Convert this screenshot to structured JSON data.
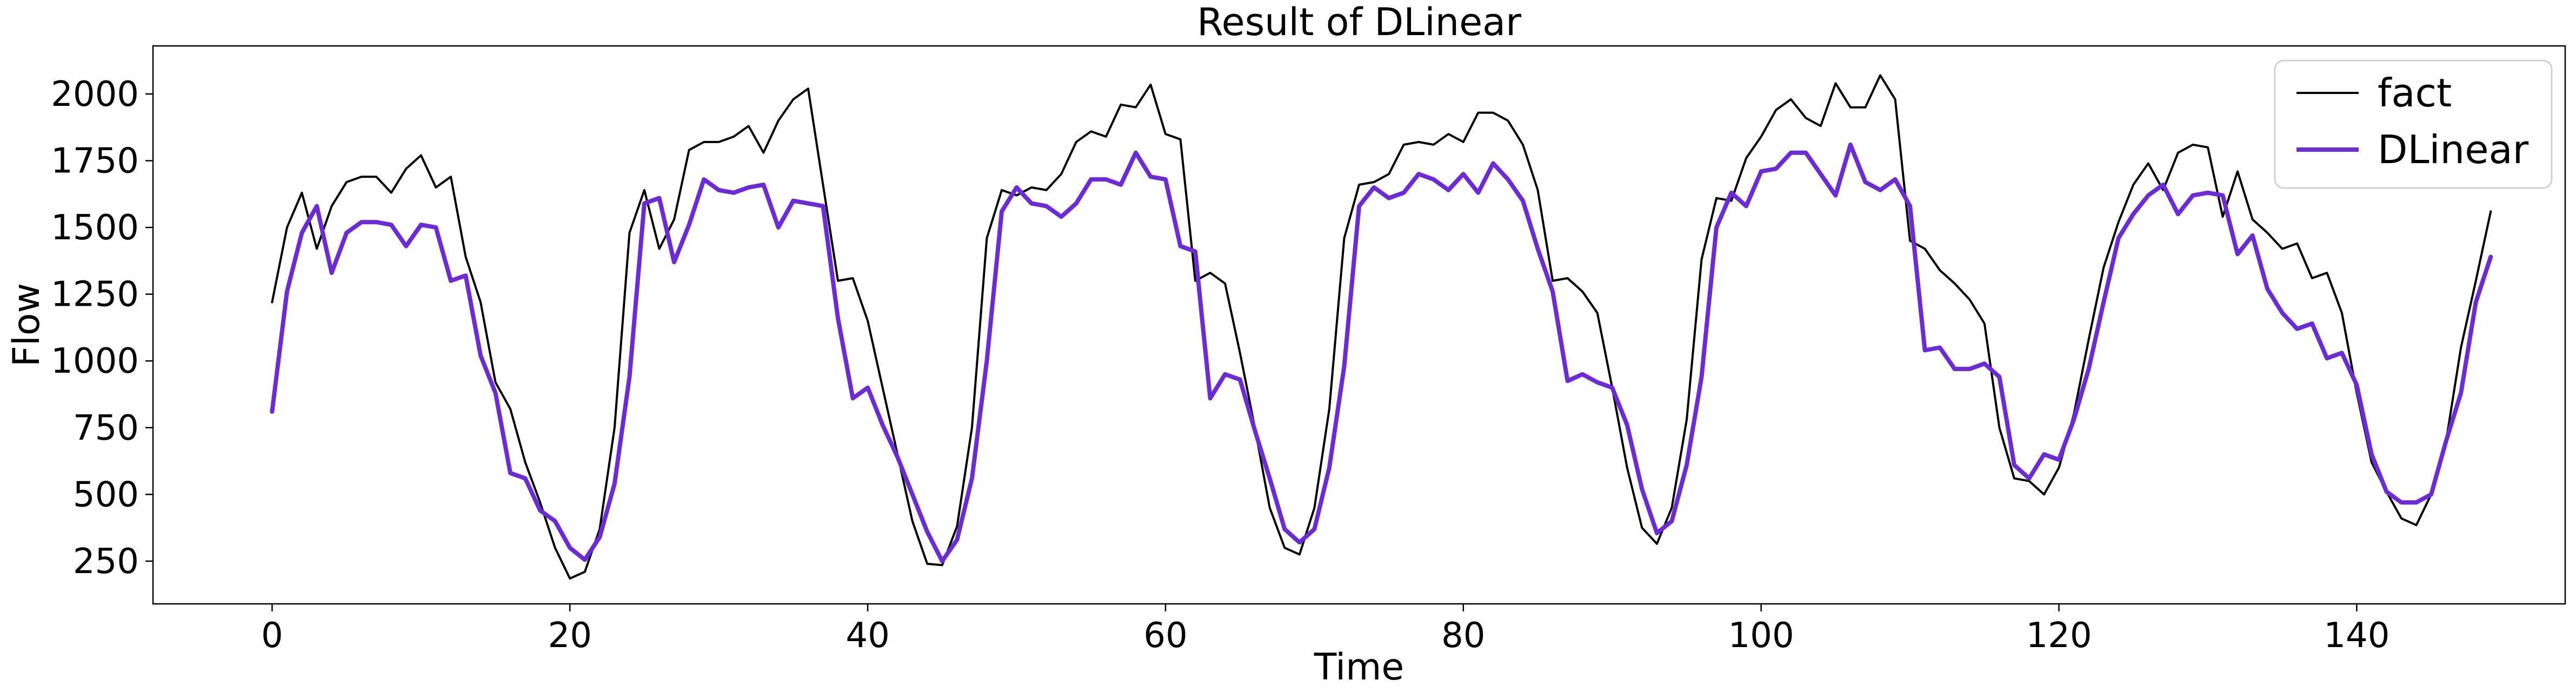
{
  "chart_data": {
    "type": "line",
    "title": "Result of DLinear",
    "xlabel": "Time",
    "ylabel": "Flow",
    "xlim": [
      -8,
      154
    ],
    "ylim": [
      90,
      2180
    ],
    "xticks": [
      0,
      20,
      40,
      60,
      80,
      100,
      120,
      140
    ],
    "yticks": [
      250,
      500,
      750,
      1000,
      1250,
      1500,
      1750,
      2000
    ],
    "grid": false,
    "legend_position": "top-right",
    "x": [
      0,
      1,
      2,
      3,
      4,
      5,
      6,
      7,
      8,
      9,
      10,
      11,
      12,
      13,
      14,
      15,
      16,
      17,
      18,
      19,
      20,
      21,
      22,
      23,
      24,
      25,
      26,
      27,
      28,
      29,
      30,
      31,
      32,
      33,
      34,
      35,
      36,
      37,
      38,
      39,
      40,
      41,
      42,
      43,
      44,
      45,
      46,
      47,
      48,
      49,
      50,
      51,
      52,
      53,
      54,
      55,
      56,
      57,
      58,
      59,
      60,
      61,
      62,
      63,
      64,
      65,
      66,
      67,
      68,
      69,
      70,
      71,
      72,
      73,
      74,
      75,
      76,
      77,
      78,
      79,
      80,
      81,
      82,
      83,
      84,
      85,
      86,
      87,
      88,
      89,
      90,
      91,
      92,
      93,
      94,
      95,
      96,
      97,
      98,
      99,
      100,
      101,
      102,
      103,
      104,
      105,
      106,
      107,
      108,
      109,
      110,
      111,
      112,
      113,
      114,
      115,
      116,
      117,
      118,
      119,
      120,
      121,
      122,
      123,
      124,
      125,
      126,
      127,
      128,
      129,
      130,
      131,
      132,
      133,
      134,
      135,
      136,
      137,
      138,
      139,
      140,
      141,
      142,
      143,
      144,
      145,
      146,
      147,
      148,
      149
    ],
    "series": [
      {
        "name": "fact",
        "color": "#000000",
        "values": [
          1220,
          1500,
          1630,
          1420,
          1580,
          1670,
          1690,
          1690,
          1630,
          1720,
          1770,
          1650,
          1690,
          1390,
          1220,
          920,
          820,
          620,
          470,
          300,
          185,
          210,
          370,
          750,
          1480,
          1640,
          1420,
          1530,
          1790,
          1820,
          1820,
          1840,
          1880,
          1780,
          1900,
          1980,
          2020,
          1660,
          1300,
          1310,
          1150,
          900,
          650,
          400,
          240,
          235,
          380,
          750,
          1460,
          1640,
          1620,
          1650,
          1640,
          1700,
          1820,
          1860,
          1840,
          1960,
          1950,
          2035,
          1850,
          1830,
          1300,
          1330,
          1290,
          1030,
          750,
          450,
          300,
          275,
          450,
          820,
          1460,
          1660,
          1670,
          1700,
          1810,
          1820,
          1810,
          1850,
          1820,
          1930,
          1930,
          1900,
          1810,
          1640,
          1300,
          1310,
          1260,
          1180,
          900,
          600,
          375,
          315,
          450,
          780,
          1380,
          1610,
          1600,
          1760,
          1840,
          1940,
          1980,
          1910,
          1880,
          2040,
          1950,
          1950,
          2070,
          1980,
          1450,
          1420,
          1340,
          1290,
          1230,
          1140,
          750,
          560,
          550,
          500,
          600,
          800,
          1080,
          1350,
          1520,
          1660,
          1740,
          1640,
          1780,
          1810,
          1800,
          1540,
          1710,
          1530,
          1480,
          1420,
          1440,
          1310,
          1330,
          1180,
          880,
          620,
          510,
          410,
          385,
          500,
          700,
          1050,
          1300,
          1560
        ]
      },
      {
        "name": "DLinear",
        "color": "#6c2bd9",
        "values": [
          810,
          1260,
          1480,
          1580,
          1330,
          1480,
          1520,
          1520,
          1510,
          1430,
          1510,
          1500,
          1300,
          1320,
          1020,
          880,
          580,
          560,
          440,
          400,
          300,
          255,
          340,
          540,
          940,
          1590,
          1610,
          1370,
          1510,
          1680,
          1640,
          1630,
          1650,
          1660,
          1500,
          1600,
          1590,
          1580,
          1160,
          860,
          900,
          760,
          640,
          500,
          360,
          250,
          330,
          560,
          1000,
          1560,
          1650,
          1590,
          1580,
          1540,
          1590,
          1680,
          1680,
          1660,
          1780,
          1690,
          1680,
          1430,
          1410,
          860,
          950,
          930,
          740,
          560,
          370,
          320,
          370,
          600,
          980,
          1580,
          1650,
          1610,
          1630,
          1700,
          1680,
          1640,
          1700,
          1630,
          1740,
          1680,
          1600,
          1420,
          1260,
          925,
          950,
          920,
          900,
          760,
          520,
          355,
          400,
          610,
          940,
          1500,
          1630,
          1580,
          1710,
          1720,
          1780,
          1780,
          1700,
          1620,
          1810,
          1670,
          1640,
          1680,
          1580,
          1040,
          1050,
          970,
          970,
          990,
          940,
          610,
          560,
          650,
          630,
          780,
          970,
          1220,
          1460,
          1550,
          1620,
          1660,
          1550,
          1620,
          1630,
          1620,
          1400,
          1470,
          1270,
          1180,
          1120,
          1140,
          1010,
          1030,
          910,
          650,
          510,
          470,
          470,
          500,
          700,
          880,
          1220,
          1390
        ]
      }
    ]
  }
}
